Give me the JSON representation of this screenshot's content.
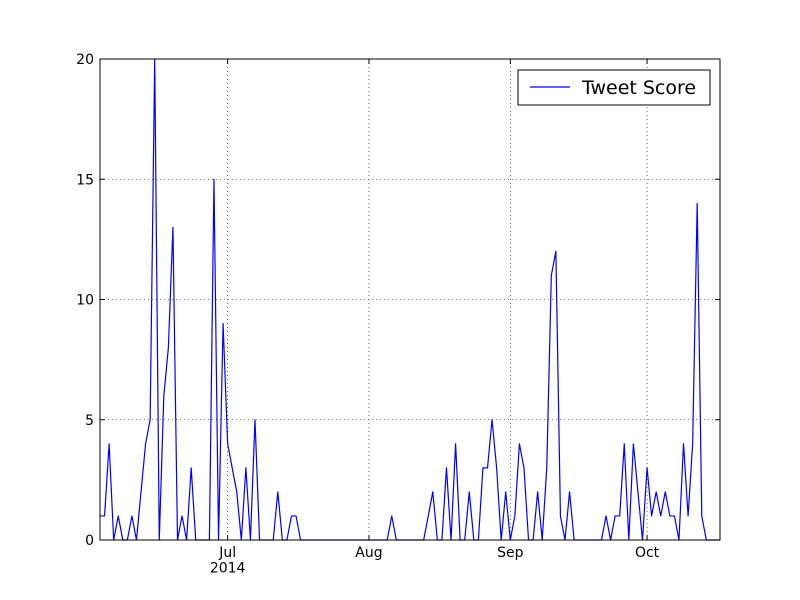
{
  "chart_data": {
    "type": "line",
    "x": [
      154,
      155,
      156,
      157,
      158,
      159,
      160,
      161,
      162,
      163,
      164,
      165,
      166,
      167,
      168,
      169,
      170,
      171,
      172,
      173,
      174,
      175,
      176,
      177,
      178,
      179,
      180,
      181,
      182,
      183,
      184,
      185,
      186,
      187,
      188,
      189,
      190,
      191,
      192,
      193,
      194,
      195,
      196,
      197,
      198,
      199,
      200,
      201,
      202,
      203,
      204,
      205,
      206,
      207,
      208,
      209,
      210,
      211,
      212,
      213,
      214,
      215,
      216,
      217,
      218,
      219,
      220,
      221,
      222,
      223,
      224,
      225,
      226,
      227,
      228,
      229,
      230,
      231,
      232,
      233,
      234,
      235,
      236,
      237,
      238,
      239,
      240,
      241,
      242,
      243,
      244,
      245,
      246,
      247,
      248,
      249,
      250,
      251,
      252,
      253,
      254,
      255,
      256,
      257,
      258,
      259,
      260,
      261,
      262,
      263,
      264,
      265,
      266,
      267,
      268,
      269,
      270,
      271,
      272,
      273,
      274,
      275,
      276,
      277,
      278,
      279,
      280,
      281,
      282,
      283,
      284,
      285,
      286,
      287,
      288,
      289,
      290
    ],
    "series": [
      {
        "name": "Tweet Score",
        "color": "#0000ff",
        "values": [
          1,
          1,
          4,
          0,
          1,
          0,
          0,
          1,
          0,
          2,
          4,
          5,
          20,
          0,
          6,
          8,
          13,
          0,
          1,
          0,
          3,
          0,
          0,
          0,
          0,
          15,
          0,
          9,
          4,
          3,
          2,
          0,
          3,
          0,
          5,
          0,
          0,
          0,
          0,
          2,
          0,
          0,
          1,
          1,
          0,
          0,
          0,
          0,
          0,
          0,
          0,
          0,
          0,
          0,
          0,
          0,
          0,
          0,
          0,
          0,
          0,
          0,
          0,
          0,
          1,
          0,
          0,
          0,
          0,
          0,
          0,
          0,
          1,
          2,
          0,
          0,
          3,
          0,
          4,
          0,
          0,
          2,
          0,
          0,
          3,
          3,
          5,
          3,
          0,
          2,
          0,
          1,
          4,
          3,
          0,
          0,
          2,
          0,
          3,
          11,
          12,
          1,
          0,
          2,
          0,
          0,
          0,
          0,
          0,
          0,
          0,
          1,
          0,
          1,
          1,
          4,
          0,
          4,
          2,
          0,
          3,
          1,
          2,
          1,
          2,
          1,
          1,
          0,
          4,
          1,
          4,
          14,
          1,
          0,
          0,
          0,
          0
        ]
      }
    ],
    "xlim": [
      154,
      290
    ],
    "xticks": [
      {
        "value": 182,
        "label": "Jul\n2014"
      },
      {
        "value": 213,
        "label": "Aug"
      },
      {
        "value": 244,
        "label": "Sep"
      },
      {
        "value": 274,
        "label": "Oct"
      }
    ],
    "ylim": [
      0,
      20
    ],
    "yticks": [
      0,
      5,
      10,
      15,
      20
    ],
    "grid": true,
    "legend": "upper right"
  }
}
